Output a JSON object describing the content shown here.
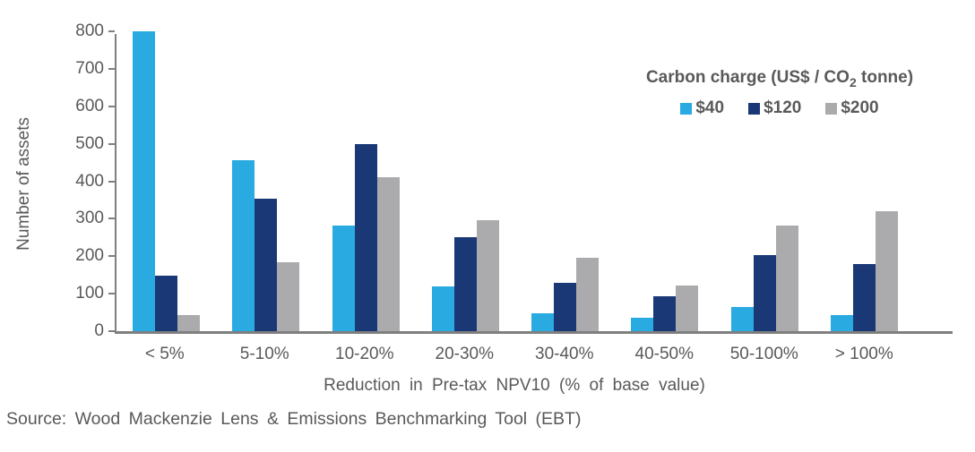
{
  "chart_data": {
    "type": "bar",
    "categories": [
      "< 5%",
      "5-10%",
      "10-20%",
      "20-30%",
      "30-40%",
      "40-50%",
      "50-100%",
      "> 100%"
    ],
    "series": [
      {
        "name": "$40",
        "color": "#29ABE2",
        "values": [
          800,
          455,
          283,
          120,
          48,
          35,
          65,
          42
        ]
      },
      {
        "name": "$120",
        "color": "#1B3876",
        "values": [
          148,
          353,
          500,
          250,
          128,
          92,
          202,
          178
        ]
      },
      {
        "name": "$200",
        "color": "#ABABAD",
        "values": [
          43,
          185,
          410,
          295,
          197,
          122,
          281,
          320
        ]
      }
    ],
    "xlabel": "Reduction in Pre-tax NPV10 (% of base value)",
    "ylabel": "Number of assets",
    "ylim": [
      0,
      800
    ],
    "ytick_step": 100,
    "grid": false,
    "legend_position": "top-right",
    "legend_title": {
      "prefix": "Carbon charge (US$ / CO",
      "subscript": "2",
      "suffix": " tonne)"
    }
  },
  "source_note": "Source: Wood Mackenzie Lens & Emissions Benchmarking Tool (EBT)",
  "colors": {
    "axis_line": "#7F7F7F",
    "text": "#595959"
  }
}
